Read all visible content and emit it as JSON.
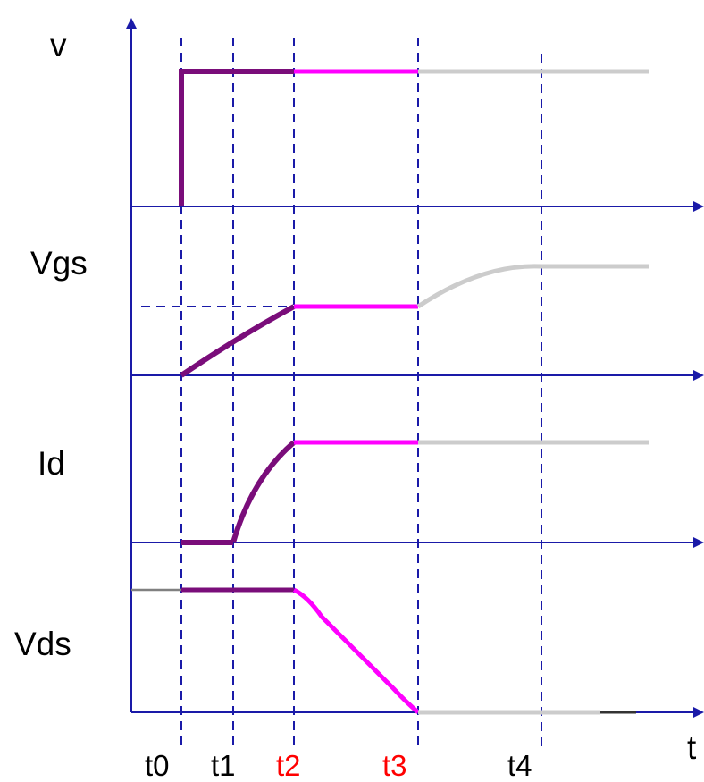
{
  "signals": [
    {
      "id": "gate-drive",
      "label": "v"
    },
    {
      "id": "vgs",
      "label": "Vgs"
    },
    {
      "id": "id",
      "label": "Id"
    },
    {
      "id": "vds",
      "label": "Vds"
    }
  ],
  "time_axis": {
    "label": "t",
    "markers": [
      {
        "label": "t0",
        "color": "#000000"
      },
      {
        "label": "t1",
        "color": "#000000"
      },
      {
        "label": "t2",
        "color": "#ff0000"
      },
      {
        "label": "t3",
        "color": "#ff0000"
      },
      {
        "label": "t4",
        "color": "#000000"
      }
    ]
  },
  "colors": {
    "axis": "#1a1aa8",
    "phase_t0_t2": "#7a0d7a",
    "phase_t2_t3": "#ff00ff",
    "phase_after_t3": "#cccccc",
    "pre_t0": "#808080",
    "tail_mark": "#333333"
  }
}
